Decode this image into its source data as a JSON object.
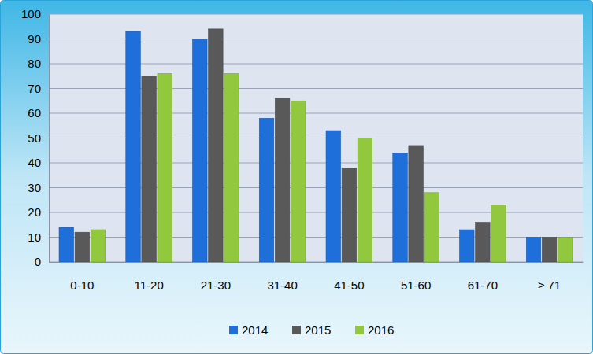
{
  "chart_data": {
    "type": "bar",
    "categories": [
      "0-10",
      "11-20",
      "21-30",
      "31-40",
      "41-50",
      "51-60",
      "61-70",
      "≥ 71"
    ],
    "series": [
      {
        "name": "2014",
        "color": "#1e6fd9",
        "values": [
          14,
          93,
          90,
          58,
          53,
          44,
          13,
          10
        ]
      },
      {
        "name": "2015",
        "color": "#595959",
        "values": [
          12,
          75,
          94,
          66,
          38,
          47,
          16,
          10
        ]
      },
      {
        "name": "2016",
        "color": "#92c83e",
        "values": [
          13,
          76,
          76,
          65,
          50,
          28,
          23,
          10
        ]
      }
    ],
    "ylim": [
      0,
      100
    ],
    "yticks": [
      0,
      10,
      20,
      30,
      40,
      50,
      60,
      70,
      80,
      90,
      100
    ],
    "grid": true,
    "legend": "bottom"
  }
}
